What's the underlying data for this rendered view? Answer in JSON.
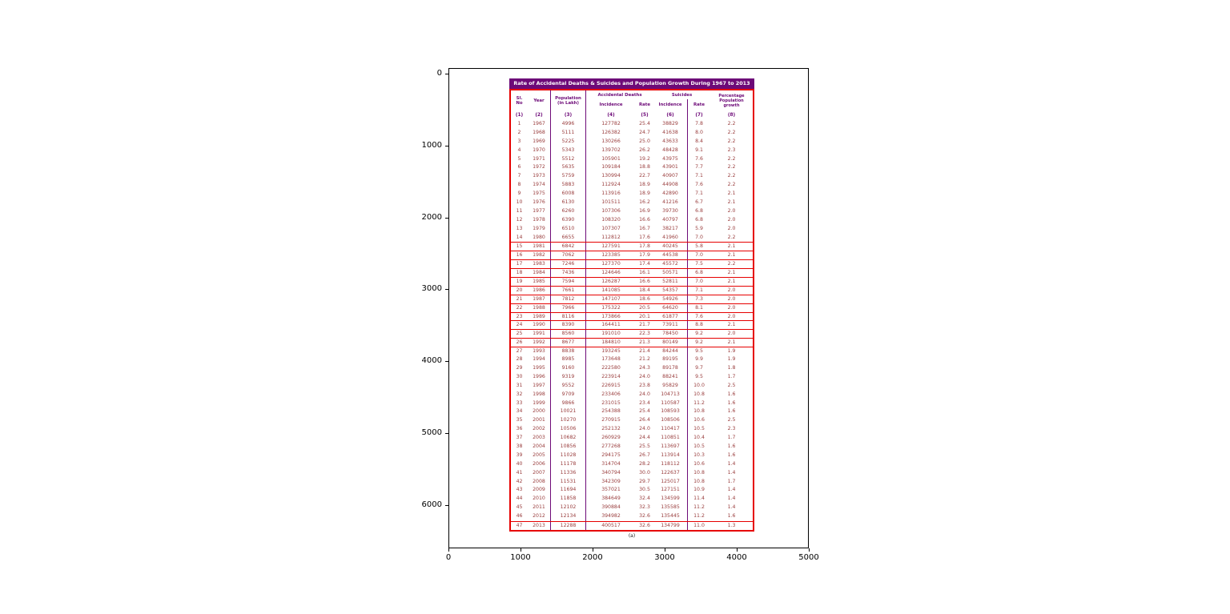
{
  "colors": {
    "purple": "#6d0a78",
    "red": "#e60000",
    "ink": "#9a3e3e",
    "title_text": "#ffffff",
    "axis": "#000000"
  },
  "chart_data": {
    "type": "table",
    "title": "Rate of Accidental Deaths & Suicides and Population Growth During 1967 to 2013",
    "caption": "(a)",
    "header_labels": {
      "sl_no": "Sl.\nNo",
      "year": "Year",
      "population": "Population\n(in Lakh)",
      "accidental_deaths": "Accidental Deaths",
      "suicides": "Suicides",
      "incidence": "Incidence",
      "rate": "Rate",
      "pct_growth": "Percentage\nPopulation\ngrowth"
    },
    "columns": [
      "Sl. No",
      "Year",
      "Population (in Lakh)",
      "Accidental Deaths - Incidence",
      "Accidental Deaths - Rate",
      "Suicides - Incidence",
      "Suicides - Rate",
      "Percentage Population growth"
    ],
    "column_numbers": [
      "(1)",
      "(2)",
      "(3)",
      "(4)",
      "(5)",
      "(6)",
      "(7)",
      "(8)"
    ],
    "rows": [
      [
        1,
        1967,
        4996,
        127782,
        25.4,
        38829,
        7.8,
        2.2
      ],
      [
        2,
        1968,
        5111,
        126382,
        24.7,
        41638,
        8.0,
        2.2
      ],
      [
        3,
        1969,
        5225,
        130266,
        25.0,
        43633,
        8.4,
        2.2
      ],
      [
        4,
        1970,
        5343,
        139702,
        26.2,
        48428,
        9.1,
        2.3
      ],
      [
        5,
        1971,
        5512,
        105901,
        19.2,
        43975,
        7.6,
        2.2
      ],
      [
        6,
        1972,
        5635,
        109184,
        18.8,
        43901,
        7.7,
        2.2
      ],
      [
        7,
        1973,
        5759,
        130994,
        22.7,
        40907,
        7.1,
        2.2
      ],
      [
        8,
        1974,
        5883,
        112924,
        18.9,
        44908,
        7.6,
        2.2
      ],
      [
        9,
        1975,
        6008,
        113916,
        18.9,
        42890,
        7.1,
        2.1
      ],
      [
        10,
        1976,
        6130,
        101511,
        16.2,
        41216,
        6.7,
        2.1
      ],
      [
        11,
        1977,
        6260,
        107306,
        16.9,
        39730,
        6.8,
        2.0
      ],
      [
        12,
        1978,
        6390,
        108320,
        16.6,
        40797,
        6.8,
        2.0
      ],
      [
        13,
        1979,
        6510,
        107307,
        16.7,
        38217,
        5.9,
        2.0
      ],
      [
        14,
        1980,
        6655,
        112812,
        17.6,
        41960,
        7.0,
        2.2
      ],
      [
        15,
        1981,
        6842,
        127591,
        17.8,
        40245,
        5.8,
        2.1
      ],
      [
        16,
        1982,
        7062,
        123385,
        17.9,
        44538,
        7.0,
        2.1
      ],
      [
        17,
        1983,
        7246,
        127370,
        17.4,
        45572,
        7.5,
        2.2
      ],
      [
        18,
        1984,
        7436,
        124646,
        16.1,
        50571,
        6.8,
        2.1
      ],
      [
        19,
        1985,
        7594,
        126287,
        16.6,
        52811,
        7.0,
        2.1
      ],
      [
        20,
        1986,
        7661,
        141085,
        18.4,
        54357,
        7.1,
        2.0
      ],
      [
        21,
        1987,
        7812,
        147107,
        18.6,
        54926,
        7.3,
        2.0
      ],
      [
        22,
        1988,
        7966,
        175322,
        20.5,
        64620,
        8.1,
        2.0
      ],
      [
        23,
        1989,
        8116,
        173866,
        20.1,
        61877,
        7.6,
        2.0
      ],
      [
        24,
        1990,
        8390,
        164411,
        21.7,
        73911,
        8.8,
        2.1
      ],
      [
        25,
        1991,
        8560,
        191010,
        22.3,
        78450,
        9.2,
        2.0
      ],
      [
        26,
        1992,
        8677,
        184810,
        21.3,
        80149,
        9.2,
        2.1
      ],
      [
        27,
        1993,
        8838,
        193245,
        21.4,
        84244,
        9.5,
        1.9
      ],
      [
        28,
        1994,
        8985,
        173648,
        21.2,
        89195,
        9.9,
        1.9
      ],
      [
        29,
        1995,
        9160,
        222580,
        24.3,
        89178,
        9.7,
        1.8
      ],
      [
        30,
        1996,
        9319,
        223914,
        24.0,
        88241,
        9.5,
        1.7
      ],
      [
        31,
        1997,
        9552,
        226915,
        23.8,
        95829,
        10.0,
        2.5
      ],
      [
        32,
        1998,
        9709,
        233406,
        24.0,
        104713,
        10.8,
        1.6
      ],
      [
        33,
        1999,
        9866,
        231015,
        23.4,
        110587,
        11.2,
        1.6
      ],
      [
        34,
        2000,
        10021,
        254388,
        25.4,
        108593,
        10.8,
        1.6
      ],
      [
        35,
        2001,
        10270,
        270915,
        26.4,
        108506,
        10.6,
        2.5
      ],
      [
        36,
        2002,
        10506,
        252132,
        24.0,
        110417,
        10.5,
        2.3
      ],
      [
        37,
        2003,
        10682,
        260929,
        24.4,
        110851,
        10.4,
        1.7
      ],
      [
        38,
        2004,
        10856,
        277268,
        25.5,
        113697,
        10.5,
        1.6
      ],
      [
        39,
        2005,
        11028,
        294175,
        26.7,
        113914,
        10.3,
        1.6
      ],
      [
        40,
        2006,
        11178,
        314704,
        28.2,
        118112,
        10.6,
        1.4
      ],
      [
        41,
        2007,
        11336,
        340794,
        30.0,
        122637,
        10.8,
        1.4
      ],
      [
        42,
        2008,
        11531,
        342309,
        29.7,
        125017,
        10.8,
        1.7
      ],
      [
        43,
        2009,
        11694,
        357021,
        30.5,
        127151,
        10.9,
        1.4
      ],
      [
        44,
        2010,
        11858,
        384649,
        32.4,
        134599,
        11.4,
        1.4
      ],
      [
        45,
        2011,
        12102,
        390884,
        32.3,
        135585,
        11.2,
        1.4
      ],
      [
        46,
        2012,
        12134,
        394982,
        32.6,
        135445,
        11.2,
        1.6
      ],
      [
        47,
        2013,
        12288,
        400517,
        32.6,
        134799,
        11.0,
        1.3
      ]
    ],
    "axes": {
      "x_ticks": [
        0,
        1000,
        2000,
        3000,
        4000,
        5000
      ],
      "y_ticks": [
        0,
        1000,
        2000,
        3000,
        4000,
        5000,
        6000
      ],
      "x_range": [
        0,
        5000
      ],
      "y_range": [
        0,
        6600
      ],
      "grid": false,
      "legend": "none"
    }
  }
}
